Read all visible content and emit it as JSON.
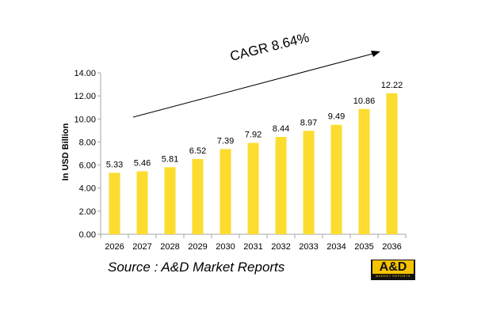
{
  "chart_data": {
    "type": "bar",
    "categories": [
      "2026",
      "2027",
      "2028",
      "2029",
      "2030",
      "2031",
      "2032",
      "2033",
      "2034",
      "2035",
      "2036"
    ],
    "values": [
      5.33,
      5.46,
      5.81,
      6.52,
      7.39,
      7.92,
      8.44,
      8.97,
      9.49,
      10.86,
      12.22
    ],
    "value_labels": [
      "5.33",
      "5.46",
      "5.81",
      "6.52",
      "7.39",
      "7.92",
      "8.44",
      "8.97",
      "9.49",
      "10.86",
      "12.22"
    ],
    "ylabel": "In USD Billion",
    "ylim": [
      0,
      14
    ],
    "yticks": [
      "0.00",
      "2.00",
      "4.00",
      "6.00",
      "8.00",
      "10.00",
      "12.00",
      "14.00"
    ],
    "annotation": "CAGR 8.64%",
    "grid": false,
    "bar_color": "#fcdc2e"
  },
  "source": "Source : A&D Market Reports",
  "logo": {
    "mark": "A&D",
    "subtitle": "MARKET REPORTS"
  }
}
